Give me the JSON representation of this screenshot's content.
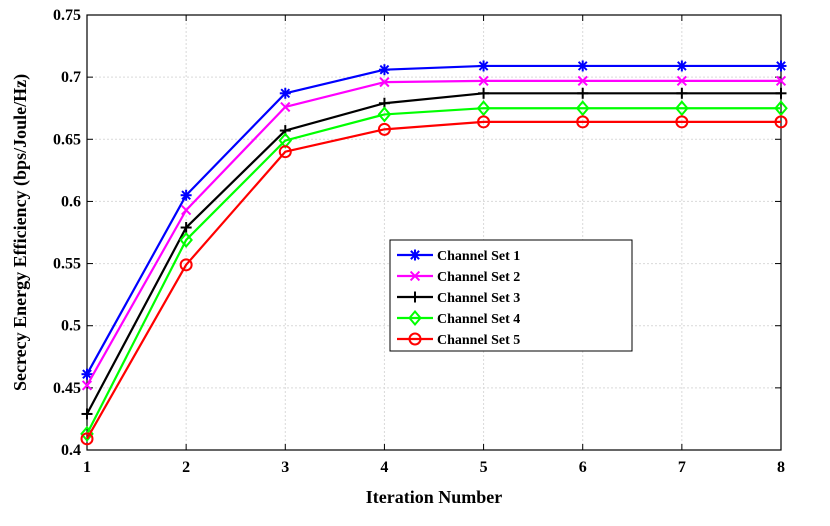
{
  "chart_data": {
    "type": "line",
    "title": "",
    "xlabel": "Iteration Number",
    "ylabel": "Secrecy Energy Efficiency (bps/Joule/Hz)",
    "x": [
      1,
      2,
      3,
      4,
      5,
      6,
      7,
      8
    ],
    "xlim": [
      1,
      8
    ],
    "ylim": [
      0.4,
      0.75
    ],
    "xticks": [
      "1",
      "2",
      "3",
      "4",
      "5",
      "6",
      "7",
      "8"
    ],
    "yticks": [
      "0.4",
      "0.45",
      "0.5",
      "0.55",
      "0.6",
      "0.65",
      "0.7",
      "0.75"
    ],
    "grid": true,
    "legend_position": "center-right",
    "series": [
      {
        "name": "Channel Set 1",
        "color": "#0000ff",
        "marker": "asterisk",
        "values": [
          0.461,
          0.605,
          0.687,
          0.706,
          0.709,
          0.709,
          0.709,
          0.709
        ]
      },
      {
        "name": "Channel Set 2",
        "color": "#ff00ff",
        "marker": "x",
        "values": [
          0.452,
          0.593,
          0.676,
          0.696,
          0.697,
          0.697,
          0.697,
          0.697
        ]
      },
      {
        "name": "Channel Set 3",
        "color": "#000000",
        "marker": "plus",
        "values": [
          0.429,
          0.579,
          0.657,
          0.679,
          0.687,
          0.687,
          0.687,
          0.687
        ]
      },
      {
        "name": "Channel Set 4",
        "color": "#00ff00",
        "marker": "diamond",
        "values": [
          0.413,
          0.569,
          0.649,
          0.67,
          0.675,
          0.675,
          0.675,
          0.675
        ]
      },
      {
        "name": "Channel Set 5",
        "color": "#ff0000",
        "marker": "circle",
        "values": [
          0.409,
          0.549,
          0.64,
          0.658,
          0.664,
          0.664,
          0.664,
          0.664
        ]
      }
    ]
  }
}
